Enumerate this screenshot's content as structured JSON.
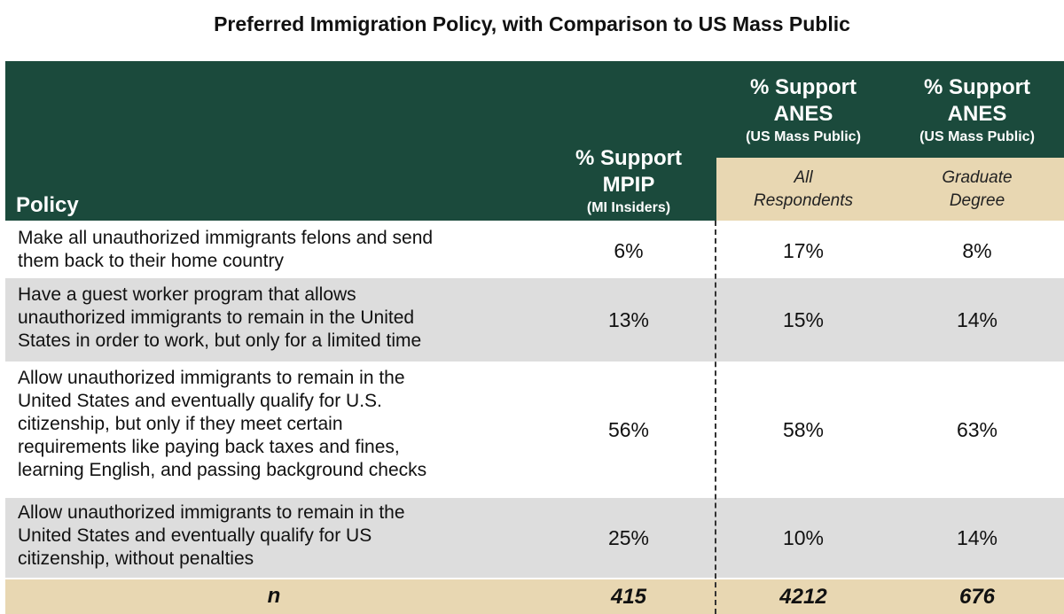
{
  "chart_data": {
    "type": "table",
    "title": "Preferred Immigration Policy, with Comparison to US Mass Public",
    "header": {
      "policy": "Policy",
      "col1": {
        "line1": "% Support",
        "line2": "MPIP",
        "line3": "(MI Insiders)"
      },
      "col2": {
        "line1": "% Support",
        "line2": "ANES",
        "line3": "(US Mass Public)",
        "sub1": "All",
        "sub2": "Respondents"
      },
      "col3": {
        "line1": "% Support",
        "line2": "ANES",
        "line3": "(US Mass Public)",
        "sub1": "Graduate",
        "sub2": "Degree"
      }
    },
    "rows": [
      {
        "policy_lines": [
          "Make all unauthorized immigrants felons and send",
          "them back to their home country"
        ],
        "mpip": "6%",
        "anes_all": "17%",
        "anes_grad": "8%"
      },
      {
        "policy_lines": [
          "Have a guest worker program that allows",
          "unauthorized immigrants to remain in the United",
          "States in order to work, but only for a limited time"
        ],
        "mpip": "13%",
        "anes_all": "15%",
        "anes_grad": "14%"
      },
      {
        "policy_lines": [
          "Allow unauthorized immigrants to remain in the",
          "United States and eventually qualify for U.S.",
          "citizenship, but only if they meet certain",
          "requirements like paying back taxes and fines,",
          "learning English, and passing background checks"
        ],
        "mpip": "56%",
        "anes_all": "58%",
        "anes_grad": "63%"
      },
      {
        "policy_lines": [
          "Allow unauthorized immigrants to remain in the",
          "United States and eventually qualify for US",
          "citizenship, without penalties"
        ],
        "mpip": "25%",
        "anes_all": "10%",
        "anes_grad": "14%"
      }
    ],
    "n_row": {
      "label": "n",
      "mpip": "415",
      "anes_all": "4212",
      "anes_grad": "676"
    }
  },
  "colors": {
    "header": "#1b4a3c",
    "tan": "#e8d7b2",
    "alt_row": "#dddddd"
  }
}
